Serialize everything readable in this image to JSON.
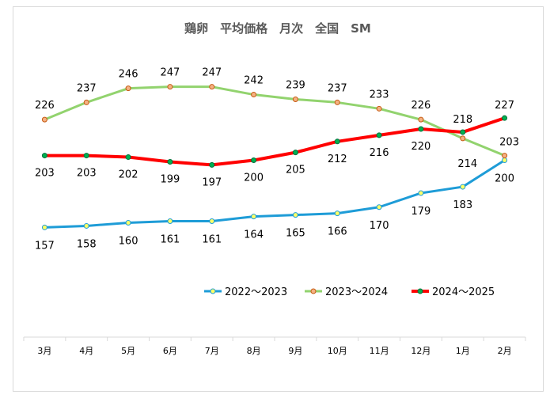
{
  "chart_data": {
    "type": "line",
    "title": "鶏卵　平均価格　月次　全国　SM",
    "categories": [
      "3月",
      "4月",
      "5月",
      "6月",
      "7月",
      "8月",
      "9月",
      "10月",
      "11月",
      "12月",
      "1月",
      "2月"
    ],
    "series": [
      {
        "name": "2022～2023",
        "color": "#1e9cd7",
        "marker_fill": "#ffff66",
        "marker_stroke": "#1e9cd7",
        "values": [
          157,
          158,
          160,
          161,
          161,
          164,
          165,
          166,
          170,
          179,
          183,
          200
        ]
      },
      {
        "name": "2023～2024",
        "color": "#92d36e",
        "marker_fill": "#f4b183",
        "marker_stroke": "#c55a11",
        "values": [
          226,
          237,
          246,
          247,
          247,
          242,
          239,
          237,
          233,
          226,
          214,
          203
        ]
      },
      {
        "name": "2024～2025",
        "color": "#ff0000",
        "marker_fill": "#00b050",
        "marker_stroke": "#00703c",
        "values": [
          203,
          203,
          202,
          199,
          197,
          200,
          205,
          212,
          216,
          220,
          218,
          227
        ]
      }
    ],
    "ylim": [
      100,
      260
    ],
    "grid": false,
    "legend": "bottom-center"
  }
}
